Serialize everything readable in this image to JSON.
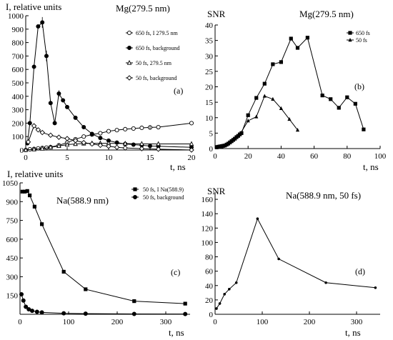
{
  "chart_data": [
    {
      "id": "a",
      "type": "line",
      "title": "Mg(279.5 nm)",
      "panel_label": "(a)",
      "ylabel": "I, relative units",
      "xlabel": "t, ns",
      "xlim": [
        0,
        20
      ],
      "ylim": [
        0,
        1000
      ],
      "xticks": [
        0,
        5,
        10,
        15,
        20
      ],
      "yticks": [
        0,
        100,
        200,
        300,
        400,
        500,
        600,
        700,
        800,
        900,
        1000
      ],
      "legend_position": "top-right",
      "series": [
        {
          "name": "650 fs, I 279.5 nm",
          "marker": "circle-open",
          "x": [
            0,
            0.5,
            1,
            1.5,
            2,
            2.5,
            3,
            4,
            5,
            6,
            7,
            8,
            9,
            10,
            11,
            12,
            13,
            14,
            15,
            16,
            20
          ],
          "y": [
            0,
            5,
            8,
            12,
            15,
            18,
            22,
            35,
            55,
            80,
            100,
            115,
            125,
            140,
            148,
            155,
            160,
            165,
            168,
            170,
            200
          ]
        },
        {
          "name": "650 fs, background",
          "marker": "circle-filled",
          "x": [
            0.2,
            0.5,
            1,
            1.5,
            2,
            2.5,
            3,
            3.5,
            4,
            4.5,
            5,
            6,
            7,
            8,
            9,
            10,
            11,
            12,
            13,
            14,
            15,
            16,
            20
          ],
          "y": [
            50,
            200,
            620,
            920,
            950,
            700,
            350,
            200,
            420,
            370,
            320,
            240,
            170,
            120,
            90,
            70,
            55,
            45,
            40,
            35,
            30,
            28,
            20
          ]
        },
        {
          "name": "50 fs, 279.5 nm",
          "marker": "triangle-open",
          "x": [
            0,
            1,
            2,
            3,
            4,
            5,
            6,
            7,
            8,
            9,
            10,
            12,
            14,
            16,
            20
          ],
          "y": [
            0,
            5,
            10,
            20,
            30,
            40,
            45,
            48,
            50,
            50,
            50,
            48,
            46,
            45,
            45
          ]
        },
        {
          "name": "50 fs, background",
          "marker": "diamond-open",
          "x": [
            0.3,
            1,
            1.5,
            2,
            3,
            4,
            5,
            6,
            7,
            8,
            9,
            10,
            11,
            12,
            14,
            16,
            20
          ],
          "y": [
            60,
            180,
            150,
            130,
            110,
            95,
            85,
            70,
            55,
            45,
            35,
            28,
            20,
            15,
            10,
            6,
            0
          ]
        }
      ]
    },
    {
      "id": "b",
      "type": "line",
      "title": "Mg(279.5 nm)",
      "panel_label": "(b)",
      "ylabel": "SNR",
      "xlabel": "t, ns",
      "xlim": [
        0,
        100
      ],
      "ylim": [
        0,
        40
      ],
      "xticks": [
        0,
        20,
        40,
        60,
        80,
        100
      ],
      "yticks": [
        0,
        5,
        10,
        15,
        20,
        25,
        30,
        35,
        40
      ],
      "legend_position": "top-right",
      "series": [
        {
          "name": "650 fs",
          "marker": "square-filled",
          "x": [
            1,
            2,
            3,
            4,
            5,
            6,
            7,
            8,
            9,
            10,
            11,
            12,
            13,
            14,
            15,
            16,
            20,
            25,
            30,
            35,
            40,
            46,
            50,
            56,
            65,
            70,
            75,
            80,
            85,
            90
          ],
          "y": [
            0.5,
            0.6,
            0.7,
            0.8,
            0.9,
            1.0,
            1.3,
            1.6,
            2.0,
            2.4,
            2.8,
            3.2,
            3.7,
            4.1,
            4.6,
            5.0,
            10.8,
            16.4,
            21.0,
            27.3,
            28.0,
            35.6,
            32.6,
            35.9,
            17.2,
            16.0,
            13.2,
            16.6,
            14.5,
            6.2
          ]
        },
        {
          "name": "50 fs",
          "marker": "triangle-filled",
          "x": [
            1,
            2,
            3,
            4,
            5,
            6,
            7,
            8,
            9,
            10,
            11,
            12,
            13,
            14,
            15,
            20,
            25,
            30,
            35,
            40,
            45,
            50
          ],
          "y": [
            0.3,
            0.4,
            0.5,
            0.6,
            0.8,
            1.0,
            1.3,
            1.6,
            2.0,
            2.4,
            2.9,
            3.3,
            3.8,
            4.2,
            4.6,
            9.0,
            10.3,
            17.0,
            16.0,
            13.0,
            9.5,
            6.0
          ]
        }
      ]
    },
    {
      "id": "c",
      "type": "line",
      "title": "Na(588.9 nm)",
      "panel_label": "(c)",
      "ylabel": "I, relative units",
      "xlabel": "t, ns",
      "xlim": [
        0,
        350
      ],
      "ylim": [
        0,
        1050
      ],
      "xticks": [
        0,
        100,
        200,
        300
      ],
      "yticks": [
        150,
        300,
        450,
        600,
        750,
        900,
        1050
      ],
      "legend_position": "top-right",
      "series": [
        {
          "name": "50 fs, I Na(588.9)",
          "marker": "square-filled",
          "x": [
            5,
            10,
            15,
            20,
            30,
            45,
            90,
            135,
            235,
            340
          ],
          "y": [
            980,
            980,
            985,
            950,
            860,
            720,
            340,
            200,
            105,
            85
          ]
        },
        {
          "name": "50 fs, background",
          "marker": "circle-filled",
          "x": [
            3,
            7,
            12,
            18,
            25,
            35,
            45,
            90,
            135,
            235,
            340
          ],
          "y": [
            160,
            110,
            60,
            40,
            28,
            20,
            15,
            8,
            5,
            3,
            2
          ]
        }
      ]
    },
    {
      "id": "d",
      "type": "line",
      "title": "Na(588.9 nm, 50 fs)",
      "panel_label": "(d)",
      "ylabel": "SNR",
      "xlabel": "t, ns",
      "xlim": [
        0,
        350
      ],
      "ylim": [
        0,
        170
      ],
      "xticks": [
        0,
        100,
        200,
        300
      ],
      "yticks": [
        0,
        20,
        40,
        60,
        80,
        100,
        120,
        140,
        160
      ],
      "series": [
        {
          "name": "",
          "marker": "dot",
          "x": [
            3,
            10,
            20,
            30,
            45,
            90,
            135,
            235,
            340
          ],
          "y": [
            8,
            15,
            28,
            35,
            44,
            133,
            77,
            44,
            37
          ]
        }
      ]
    }
  ]
}
